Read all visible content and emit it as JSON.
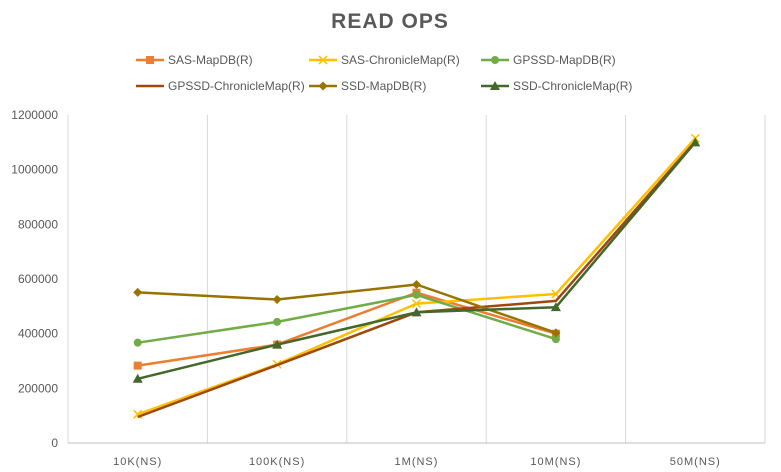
{
  "chart_data": {
    "type": "line",
    "title": "READ OPS",
    "xlabel": "",
    "ylabel": "",
    "categories": [
      "10K(NS)",
      "100K(NS)",
      "1M(NS)",
      "10M(NS)",
      "50M(NS)"
    ],
    "ylim": [
      0,
      1200000
    ],
    "yticks": [
      0,
      200000,
      400000,
      600000,
      800000,
      1000000,
      1200000
    ],
    "grid": "vertical",
    "legend_position": "top",
    "series": [
      {
        "name": "SAS-MapDB(R)",
        "color": "#ED7D31",
        "marker": "square",
        "values": [
          283000,
          360000,
          550000,
          400000,
          null
        ]
      },
      {
        "name": "SAS-ChronicleMap(R)",
        "color": "#FFC000",
        "marker": "x",
        "values": [
          105000,
          288000,
          510000,
          545000,
          1115000
        ]
      },
      {
        "name": "GPSSD-MapDB(R)",
        "color": "#70AD47",
        "marker": "circle",
        "values": [
          367000,
          443000,
          542000,
          380000,
          null
        ]
      },
      {
        "name": "GPSSD-ChronicleMap(R)",
        "color": "#9E480E",
        "marker": "none",
        "values": [
          95000,
          285000,
          478000,
          520000,
          1103000
        ]
      },
      {
        "name": "SSD-MapDB(R)",
        "color": "#997300",
        "marker": "diamond",
        "values": [
          551000,
          525000,
          580000,
          403000,
          null
        ]
      },
      {
        "name": "SSD-ChronicleMap(R)",
        "color": "#43682B",
        "marker": "triangle",
        "values": [
          235000,
          360000,
          478000,
          497000,
          1100000
        ]
      }
    ]
  }
}
